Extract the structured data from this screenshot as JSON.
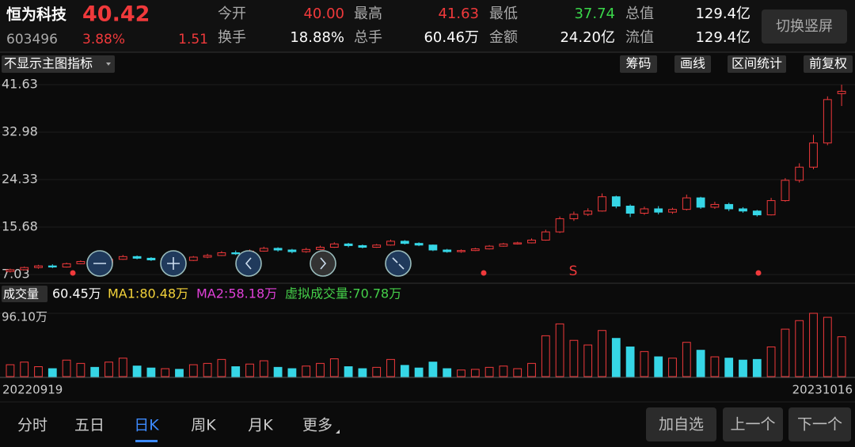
{
  "header": {
    "name": "恒为科技",
    "price": "40.42",
    "code": "603496",
    "change_pct": "3.88%",
    "change": "1.51",
    "stats": [
      [
        "今开",
        "40.00",
        "最高",
        "41.63",
        "最低",
        "37.74",
        "总值",
        "129.4亿"
      ],
      [
        "换手",
        "18.88%",
        "总手",
        "60.46万",
        "金额",
        "24.20亿",
        "流值",
        "129.4亿"
      ]
    ],
    "button": "切换竖屏"
  },
  "toolbar": {
    "indicator": "不显示主图指标",
    "buttons": [
      "筹码",
      "画线",
      "区间统计",
      "前复权"
    ]
  },
  "price_chart": {
    "type": "candlestick",
    "ylim": [
      7.03,
      41.63
    ],
    "yticks": [
      41.63,
      32.98,
      24.33,
      15.68,
      7.03
    ],
    "signal": "S",
    "open": [
      7.6,
      7.9,
      8.3,
      8.6,
      8.4,
      9.0,
      9.4,
      9.2,
      9.8,
      10.3,
      10.0,
      9.7,
      9.9,
      9.6,
      10.2,
      10.5,
      11.0,
      10.8,
      11.3,
      11.8,
      11.5,
      11.2,
      11.6,
      12.0,
      12.6,
      12.3,
      12.0,
      12.4,
      13.1,
      12.7,
      12.4,
      11.5,
      11.2,
      11.4,
      11.7,
      12.2,
      12.6,
      12.8,
      13.3,
      14.8,
      17.2,
      18.0,
      18.6,
      21.2,
      19.5,
      18.2,
      19.0,
      18.4,
      18.9,
      21.0,
      19.3,
      19.8,
      19.0,
      18.6,
      17.9,
      20.5,
      24.2,
      26.6,
      31.0,
      40.0
    ],
    "close": [
      7.9,
      8.3,
      8.6,
      8.4,
      9.0,
      9.4,
      9.2,
      9.8,
      10.3,
      10.0,
      9.7,
      9.9,
      9.6,
      10.2,
      10.5,
      11.0,
      10.8,
      11.3,
      11.8,
      11.5,
      11.2,
      11.6,
      12.0,
      12.6,
      12.3,
      12.0,
      12.4,
      13.1,
      12.7,
      12.4,
      11.5,
      11.2,
      11.4,
      11.7,
      12.2,
      12.6,
      12.8,
      13.3,
      14.8,
      17.2,
      18.0,
      18.6,
      21.2,
      19.5,
      18.2,
      19.0,
      18.4,
      18.9,
      21.0,
      19.3,
      19.8,
      19.0,
      18.6,
      17.9,
      20.5,
      24.2,
      26.6,
      31.0,
      38.91,
      40.42
    ],
    "high": [
      8.1,
      8.5,
      8.8,
      8.9,
      9.2,
      9.6,
      9.7,
      10.0,
      10.6,
      10.5,
      10.2,
      10.1,
      10.1,
      10.4,
      10.8,
      11.3,
      11.4,
      11.6,
      12.1,
      12.0,
      11.7,
      11.9,
      12.3,
      12.9,
      12.8,
      12.5,
      12.6,
      13.4,
      13.3,
      12.9,
      12.5,
      11.7,
      11.6,
      11.9,
      12.4,
      12.8,
      13.0,
      13.6,
      15.2,
      17.6,
      18.5,
      19.1,
      21.8,
      21.4,
      19.8,
      19.4,
      19.5,
      19.2,
      21.6,
      21.2,
      20.3,
      20.1,
      19.3,
      18.8,
      21.0,
      24.6,
      27.3,
      32.5,
      39.5,
      41.63
    ],
    "low": [
      7.4,
      7.8,
      8.1,
      8.2,
      8.3,
      8.9,
      9.0,
      9.1,
      9.7,
      9.8,
      9.5,
      9.5,
      9.4,
      9.5,
      10.0,
      10.4,
      10.6,
      10.7,
      11.2,
      11.2,
      10.9,
      11.0,
      11.5,
      11.9,
      12.0,
      11.8,
      11.9,
      12.3,
      12.5,
      12.2,
      11.3,
      11.0,
      11.0,
      11.3,
      11.6,
      12.1,
      12.5,
      12.7,
      13.2,
      14.6,
      16.8,
      17.7,
      18.5,
      19.1,
      17.5,
      17.9,
      18.0,
      18.1,
      18.7,
      19.0,
      19.0,
      18.6,
      18.3,
      17.6,
      17.8,
      20.3,
      23.8,
      26.2,
      30.6,
      37.74
    ]
  },
  "volume_chart": {
    "type": "bar",
    "label": "成交量",
    "current": "60.45万",
    "ma1": "MA1:80.48万",
    "ma2": "MA2:58.18万",
    "virtual": "虚拟成交量:70.78万",
    "ylim": [
      0,
      96.1
    ],
    "yticks": [
      {
        "value": 96.1,
        "label": "96.10万"
      }
    ],
    "values": [
      18,
      22,
      15,
      12,
      25,
      20,
      14,
      22,
      28,
      16,
      13,
      12,
      11,
      18,
      20,
      26,
      15,
      19,
      24,
      14,
      12,
      16,
      20,
      27,
      15,
      12,
      14,
      26,
      17,
      13,
      22,
      12,
      10,
      11,
      14,
      16,
      12,
      20,
      62,
      80,
      55,
      48,
      70,
      58,
      45,
      38,
      30,
      28,
      52,
      40,
      30,
      28,
      25,
      26,
      45,
      72,
      85,
      96.1,
      90,
      60.45
    ],
    "start_date": "20220919",
    "end_date": "20231016"
  },
  "tabs": [
    "分时",
    "五日",
    "日K",
    "周K",
    "月K",
    "更多"
  ],
  "actions": [
    "加自选",
    "上一个",
    "下一个"
  ]
}
